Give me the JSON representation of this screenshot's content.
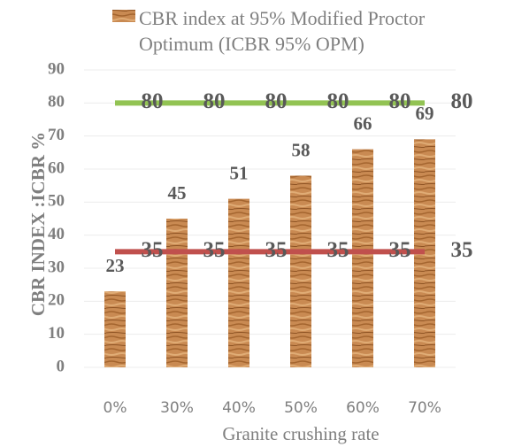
{
  "chart_data": {
    "type": "bar",
    "x_axis_label": "Granite crushing rate",
    "y_axis_label": "CBR INDEX :ICBR %",
    "categories": [
      "0%",
      "30%",
      "40%",
      "50%",
      "60%",
      "70%"
    ],
    "series": [
      {
        "name": "CBR index at 95% Modified Proctor Optimum (ICBR 95% OPM)",
        "type": "bar",
        "color": "#c98a52",
        "values": [
          23,
          45,
          51,
          58,
          66,
          69
        ]
      },
      {
        "type": "line",
        "color": "#92c353",
        "values": [
          80,
          80,
          80,
          80,
          80,
          80
        ]
      },
      {
        "type": "line",
        "color": "#c0504d",
        "values": [
          35,
          35,
          35,
          35,
          35,
          35
        ]
      }
    ],
    "ylim": [
      0,
      90
    ],
    "yticks": [
      0,
      10,
      20,
      30,
      40,
      50,
      60,
      70,
      80,
      90
    ],
    "grid": true,
    "legend": "top"
  }
}
